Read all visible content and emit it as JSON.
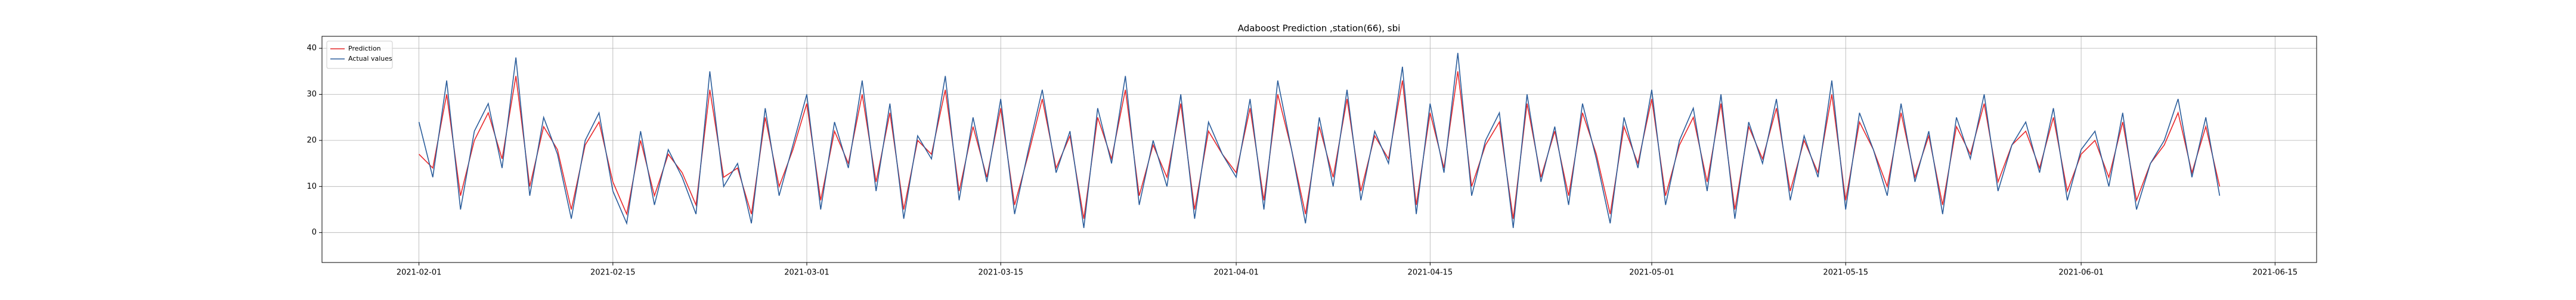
{
  "chart_data": {
    "type": "line",
    "title": "Adaboost Prediction ,station(66), sbi",
    "x": [
      "2021-02-01",
      "2021-02-02",
      "2021-02-03",
      "2021-02-04",
      "2021-02-05",
      "2021-02-06",
      "2021-02-07",
      "2021-02-08",
      "2021-02-09",
      "2021-02-10",
      "2021-02-11",
      "2021-02-12",
      "2021-02-13",
      "2021-02-14",
      "2021-02-15",
      "2021-02-16",
      "2021-02-17",
      "2021-02-18",
      "2021-02-19",
      "2021-02-20",
      "2021-02-21",
      "2021-02-22",
      "2021-02-23",
      "2021-02-24",
      "2021-02-25",
      "2021-02-26",
      "2021-02-27",
      "2021-02-28",
      "2021-03-01",
      "2021-03-02",
      "2021-03-03",
      "2021-03-04",
      "2021-03-05",
      "2021-03-06",
      "2021-03-07",
      "2021-03-08",
      "2021-03-09",
      "2021-03-10",
      "2021-03-11",
      "2021-03-12",
      "2021-03-13",
      "2021-03-14",
      "2021-03-15",
      "2021-03-16",
      "2021-03-17",
      "2021-03-18",
      "2021-03-19",
      "2021-03-20",
      "2021-03-21",
      "2021-03-22",
      "2021-03-23",
      "2021-03-24",
      "2021-03-25",
      "2021-03-26",
      "2021-03-27",
      "2021-03-28",
      "2021-03-29",
      "2021-03-30",
      "2021-03-31",
      "2021-04-01",
      "2021-04-02",
      "2021-04-03",
      "2021-04-04",
      "2021-04-05",
      "2021-04-06",
      "2021-04-07",
      "2021-04-08",
      "2021-04-09",
      "2021-04-10",
      "2021-04-11",
      "2021-04-12",
      "2021-04-13",
      "2021-04-14",
      "2021-04-15",
      "2021-04-16",
      "2021-04-17",
      "2021-04-18",
      "2021-04-19",
      "2021-04-20",
      "2021-04-21",
      "2021-04-22",
      "2021-04-23",
      "2021-04-24",
      "2021-04-25",
      "2021-04-26",
      "2021-04-27",
      "2021-04-28",
      "2021-04-29",
      "2021-04-30",
      "2021-05-01",
      "2021-05-02",
      "2021-05-03",
      "2021-05-04",
      "2021-05-05",
      "2021-05-06",
      "2021-05-07",
      "2021-05-08",
      "2021-05-09",
      "2021-05-10",
      "2021-05-11",
      "2021-05-12",
      "2021-05-13",
      "2021-05-14",
      "2021-05-15",
      "2021-05-16",
      "2021-05-17",
      "2021-05-18",
      "2021-05-19",
      "2021-05-20",
      "2021-05-21",
      "2021-05-22",
      "2021-05-23",
      "2021-05-24",
      "2021-05-25",
      "2021-05-26",
      "2021-05-27",
      "2021-05-28",
      "2021-05-29",
      "2021-05-30",
      "2021-05-31",
      "2021-06-01",
      "2021-06-02",
      "2021-06-03",
      "2021-06-04",
      "2021-06-05",
      "2021-06-06",
      "2021-06-07",
      "2021-06-08",
      "2021-06-09",
      "2021-06-10",
      "2021-06-11"
    ],
    "series": [
      {
        "name": "Prediction",
        "color": "#e8282b",
        "values": [
          17,
          14,
          30,
          8,
          20,
          26,
          16,
          34,
          10,
          23,
          18,
          5,
          19,
          24,
          11,
          4,
          20,
          8,
          17,
          13,
          6,
          31,
          12,
          14,
          4,
          25,
          10,
          18,
          28,
          7,
          22,
          15,
          30,
          11,
          26,
          5,
          20,
          17,
          31,
          9,
          23,
          12,
          27,
          6,
          17,
          29,
          14,
          21,
          3,
          25,
          16,
          31,
          8,
          19,
          12,
          28,
          5,
          22,
          17,
          13,
          27,
          7,
          30,
          18,
          4,
          23,
          12,
          29,
          9,
          21,
          16,
          33,
          6,
          26,
          14,
          35,
          10,
          19,
          24,
          3,
          28,
          12,
          22,
          8,
          26,
          17,
          4,
          23,
          15,
          29,
          8,
          19,
          25,
          11,
          28,
          5,
          23,
          16,
          27,
          9,
          20,
          13,
          30,
          7,
          24,
          18,
          10,
          26,
          12,
          21,
          6,
          23,
          17,
          28,
          11,
          19,
          22,
          14,
          25,
          9,
          17,
          20,
          12,
          24,
          7,
          15,
          19,
          26,
          13,
          23,
          10
        ]
      },
      {
        "name": "Actual values",
        "color": "#2b5d9b",
        "values": [
          24,
          12,
          33,
          5,
          22,
          28,
          14,
          38,
          8,
          25,
          17,
          3,
          20,
          26,
          9,
          2,
          22,
          6,
          18,
          12,
          4,
          35,
          10,
          15,
          2,
          27,
          8,
          19,
          30,
          5,
          24,
          14,
          33,
          9,
          28,
          3,
          21,
          16,
          34,
          7,
          25,
          11,
          29,
          4,
          18,
          31,
          13,
          22,
          1,
          27,
          15,
          34,
          6,
          20,
          10,
          30,
          3,
          24,
          17,
          12,
          29,
          5,
          33,
          18,
          2,
          25,
          10,
          31,
          7,
          22,
          15,
          36,
          4,
          28,
          13,
          39,
          8,
          20,
          26,
          1,
          30,
          11,
          23,
          6,
          28,
          16,
          2,
          25,
          14,
          31,
          6,
          20,
          27,
          9,
          30,
          3,
          24,
          15,
          29,
          7,
          21,
          12,
          33,
          5,
          26,
          18,
          8,
          28,
          11,
          22,
          4,
          25,
          16,
          30,
          9,
          19,
          24,
          13,
          27,
          7,
          18,
          22,
          10,
          26,
          5,
          15,
          20,
          29,
          12,
          25,
          8
        ]
      }
    ],
    "xlim": [
      "2021-01-25",
      "2021-06-18"
    ],
    "xticks": [
      "2021-02-01",
      "2021-02-15",
      "2021-03-01",
      "2021-03-15",
      "2021-04-01",
      "2021-04-15",
      "2021-05-01",
      "2021-05-15",
      "2021-06-01",
      "2021-06-15"
    ],
    "ylim": [
      -6.5,
      42.6
    ],
    "yticks": [
      0,
      10,
      20,
      30,
      40
    ],
    "grid": true,
    "legend": "upper left"
  }
}
